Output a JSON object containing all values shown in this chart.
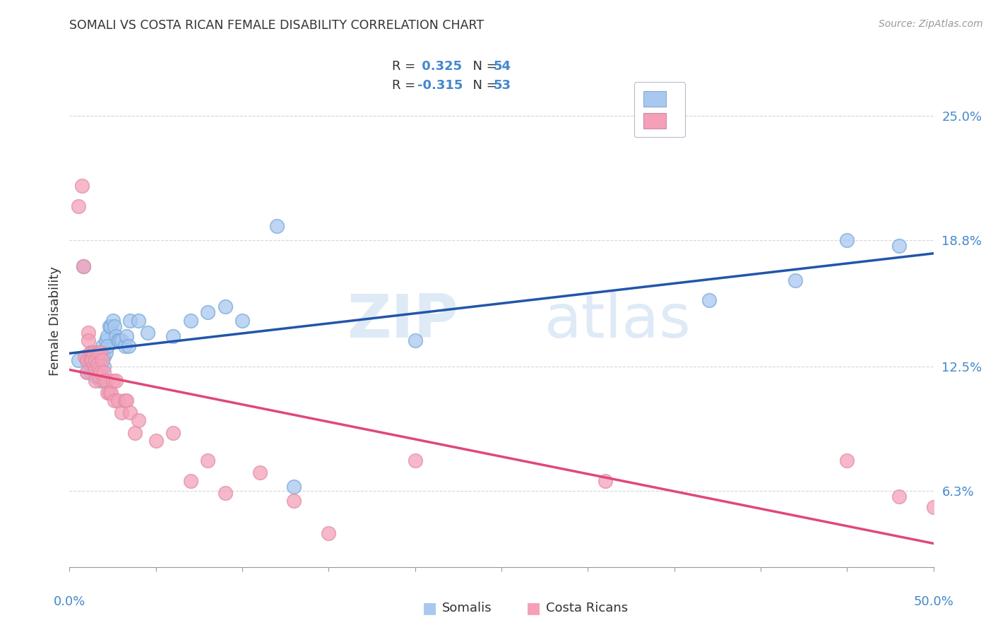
{
  "title": "SOMALI VS COSTA RICAN FEMALE DISABILITY CORRELATION CHART",
  "source": "Source: ZipAtlas.com",
  "ylabel": "Female Disability",
  "ytick_labels": [
    "6.3%",
    "12.5%",
    "18.8%",
    "25.0%"
  ],
  "ytick_values": [
    0.063,
    0.125,
    0.188,
    0.25
  ],
  "xmin": 0.0,
  "xmax": 0.5,
  "ymin": 0.025,
  "ymax": 0.27,
  "somali_color": "#A8C8F0",
  "costarican_color": "#F5A0B8",
  "somali_line_color": "#2255AA",
  "costarican_line_color": "#E04878",
  "somali_scatter_x": [
    0.005,
    0.008,
    0.01,
    0.01,
    0.012,
    0.012,
    0.013,
    0.013,
    0.014,
    0.014,
    0.015,
    0.015,
    0.015,
    0.016,
    0.016,
    0.017,
    0.017,
    0.018,
    0.018,
    0.018,
    0.019,
    0.019,
    0.02,
    0.02,
    0.021,
    0.021,
    0.022,
    0.022,
    0.023,
    0.024,
    0.025,
    0.026,
    0.027,
    0.028,
    0.029,
    0.03,
    0.032,
    0.033,
    0.034,
    0.035,
    0.04,
    0.045,
    0.06,
    0.07,
    0.08,
    0.09,
    0.1,
    0.12,
    0.13,
    0.2,
    0.37,
    0.42,
    0.45,
    0.48
  ],
  "somali_scatter_y": [
    0.128,
    0.175,
    0.128,
    0.122,
    0.128,
    0.122,
    0.13,
    0.125,
    0.125,
    0.122,
    0.128,
    0.124,
    0.12,
    0.128,
    0.122,
    0.132,
    0.128,
    0.128,
    0.122,
    0.118,
    0.135,
    0.13,
    0.13,
    0.125,
    0.138,
    0.132,
    0.14,
    0.135,
    0.145,
    0.145,
    0.148,
    0.145,
    0.14,
    0.138,
    0.138,
    0.138,
    0.135,
    0.14,
    0.135,
    0.148,
    0.148,
    0.142,
    0.14,
    0.148,
    0.152,
    0.155,
    0.148,
    0.195,
    0.065,
    0.138,
    0.158,
    0.168,
    0.188,
    0.185
  ],
  "costarican_scatter_x": [
    0.005,
    0.007,
    0.008,
    0.009,
    0.01,
    0.01,
    0.011,
    0.011,
    0.012,
    0.012,
    0.013,
    0.013,
    0.014,
    0.014,
    0.015,
    0.015,
    0.015,
    0.016,
    0.016,
    0.017,
    0.017,
    0.018,
    0.018,
    0.019,
    0.02,
    0.02,
    0.021,
    0.022,
    0.023,
    0.024,
    0.025,
    0.026,
    0.027,
    0.028,
    0.03,
    0.032,
    0.033,
    0.035,
    0.038,
    0.04,
    0.05,
    0.06,
    0.07,
    0.08,
    0.09,
    0.11,
    0.13,
    0.15,
    0.2,
    0.31,
    0.45,
    0.48,
    0.5
  ],
  "costarican_scatter_y": [
    0.205,
    0.215,
    0.175,
    0.13,
    0.128,
    0.122,
    0.142,
    0.138,
    0.132,
    0.128,
    0.132,
    0.128,
    0.132,
    0.126,
    0.128,
    0.124,
    0.118,
    0.132,
    0.126,
    0.124,
    0.12,
    0.132,
    0.122,
    0.128,
    0.122,
    0.118,
    0.118,
    0.112,
    0.112,
    0.112,
    0.118,
    0.108,
    0.118,
    0.108,
    0.102,
    0.108,
    0.108,
    0.102,
    0.092,
    0.098,
    0.088,
    0.092,
    0.068,
    0.078,
    0.062,
    0.072,
    0.058,
    0.042,
    0.078,
    0.068,
    0.078,
    0.06,
    0.055
  ],
  "watermark_zip": "ZIP",
  "watermark_atlas": "atlas",
  "background_color": "#FFFFFF",
  "grid_color": "#CCCCCC",
  "tick_label_color": "#4488CC",
  "title_color": "#333333"
}
